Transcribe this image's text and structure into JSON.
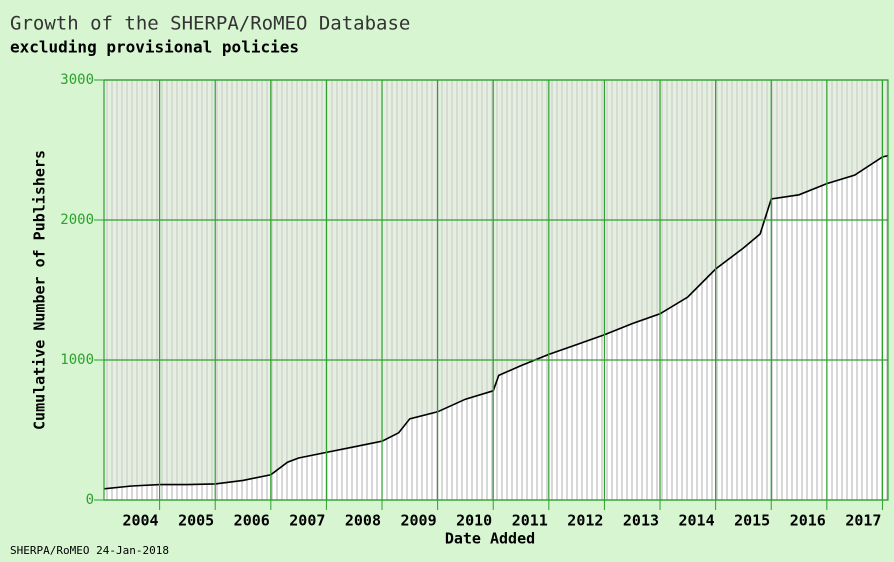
{
  "chart_data": {
    "type": "line",
    "title": "Growth of the SHERPA/RoMEO Database",
    "subtitle": "excluding provisional policies",
    "y_label": "Cumulative Number of Publishers",
    "x_label": "Date Added",
    "footer": "SHERPA/RoMEO 24-Jan-2018",
    "x": [
      2003.0,
      2003.5,
      2004.0,
      2004.5,
      2005.0,
      2005.5,
      2006.0,
      2006.3,
      2006.5,
      2007.0,
      2007.5,
      2008.0,
      2008.3,
      2008.5,
      2009.0,
      2009.5,
      2010.0,
      2010.1,
      2010.5,
      2011.0,
      2011.5,
      2012.0,
      2012.5,
      2013.0,
      2013.5,
      2014.0,
      2014.5,
      2014.8,
      2015.0,
      2015.5,
      2016.0,
      2016.5,
      2017.0,
      2017.1
    ],
    "series": [
      {
        "name": "Publishers",
        "color": "#000000",
        "values": [
          80,
          100,
          110,
          110,
          115,
          140,
          180,
          270,
          300,
          340,
          380,
          420,
          480,
          580,
          630,
          720,
          780,
          890,
          960,
          1040,
          1110,
          1180,
          1260,
          1330,
          1450,
          1650,
          1800,
          1900,
          2150,
          2180,
          2260,
          2320,
          2450,
          2460
        ]
      }
    ],
    "xlim": [
      2003,
      2017.1
    ],
    "xticks": [
      2004,
      2005,
      2006,
      2007,
      2008,
      2009,
      2010,
      2011,
      2012,
      2013,
      2014,
      2015,
      2016,
      2017
    ],
    "ylim": [
      0,
      3000
    ],
    "yticks": [
      0,
      1000,
      2000,
      3000
    ],
    "grid": true,
    "grid_color": "#2ea02e"
  }
}
